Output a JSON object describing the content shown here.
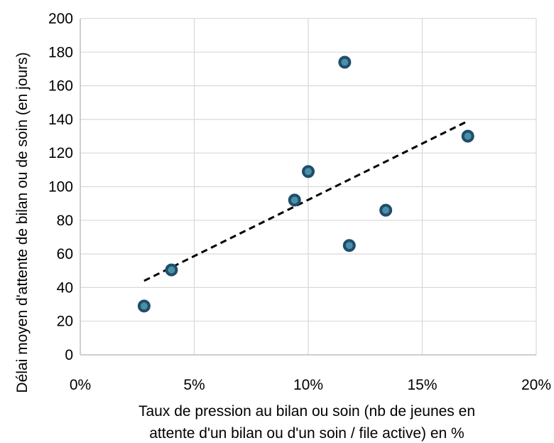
{
  "chart_data": {
    "type": "scatter",
    "title": "",
    "xlabel_lines": [
      "Taux de pression au bilan ou soin (nb de jeunes en",
      "attente d'un bilan ou d'un soin / file active) en %"
    ],
    "ylabel": "Délai moyen d'attente de bilan ou de soin (en jours)",
    "xlim": [
      0,
      20
    ],
    "ylim": [
      0,
      200
    ],
    "x_ticks": [
      0,
      5,
      10,
      15,
      20
    ],
    "x_tick_labels": [
      "0%",
      "5%",
      "10%",
      "15%",
      "20%"
    ],
    "y_ticks": [
      0,
      20,
      40,
      60,
      80,
      100,
      120,
      140,
      160,
      180,
      200
    ],
    "y_tick_labels": [
      "0",
      "20",
      "40",
      "60",
      "80",
      "100",
      "120",
      "140",
      "160",
      "180",
      "200"
    ],
    "grid": true,
    "points": [
      {
        "x": 2.8,
        "y": 29
      },
      {
        "x": 4.0,
        "y": 50.5
      },
      {
        "x": 9.4,
        "y": 92
      },
      {
        "x": 10.0,
        "y": 109
      },
      {
        "x": 11.6,
        "y": 174
      },
      {
        "x": 11.8,
        "y": 65
      },
      {
        "x": 13.4,
        "y": 86
      },
      {
        "x": 17.0,
        "y": 130
      }
    ],
    "trendline": {
      "type": "linear",
      "x": [
        2.8,
        17.0
      ],
      "y": [
        44,
        139
      ],
      "style": "dashed"
    },
    "colors": {
      "marker_fill": "#4a8fa8",
      "marker_edge": "#1f4e6b",
      "trendline": "#000000",
      "grid": "#d9d9d9",
      "axis": "#bfbfbf"
    }
  }
}
